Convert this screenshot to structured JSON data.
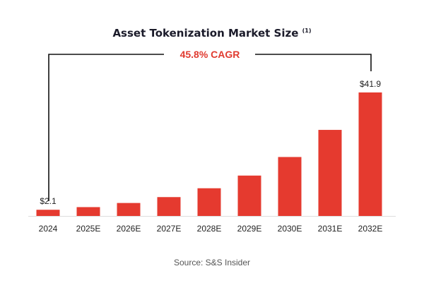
{
  "chart_data": {
    "type": "bar",
    "title": "Asset Tokenization Market Size",
    "title_superscript": "(1)",
    "annotation": "45.8% CAGR",
    "categories": [
      "2024",
      "2025E",
      "2026E",
      "2027E",
      "2028E",
      "2029E",
      "2030E",
      "2031E",
      "2032E"
    ],
    "values": [
      2.1,
      3.0,
      4.4,
      6.4,
      9.4,
      13.7,
      20.0,
      29.2,
      41.9
    ],
    "data_labels": {
      "0": "$2.1",
      "8": "$41.9"
    },
    "xlabel": "",
    "ylabel": "",
    "ylim": [
      0,
      41.9
    ],
    "grid": false,
    "bar_color": "#e53a2f",
    "annotation_color": "#e03a2f",
    "source": "Source: S&S Insider"
  }
}
